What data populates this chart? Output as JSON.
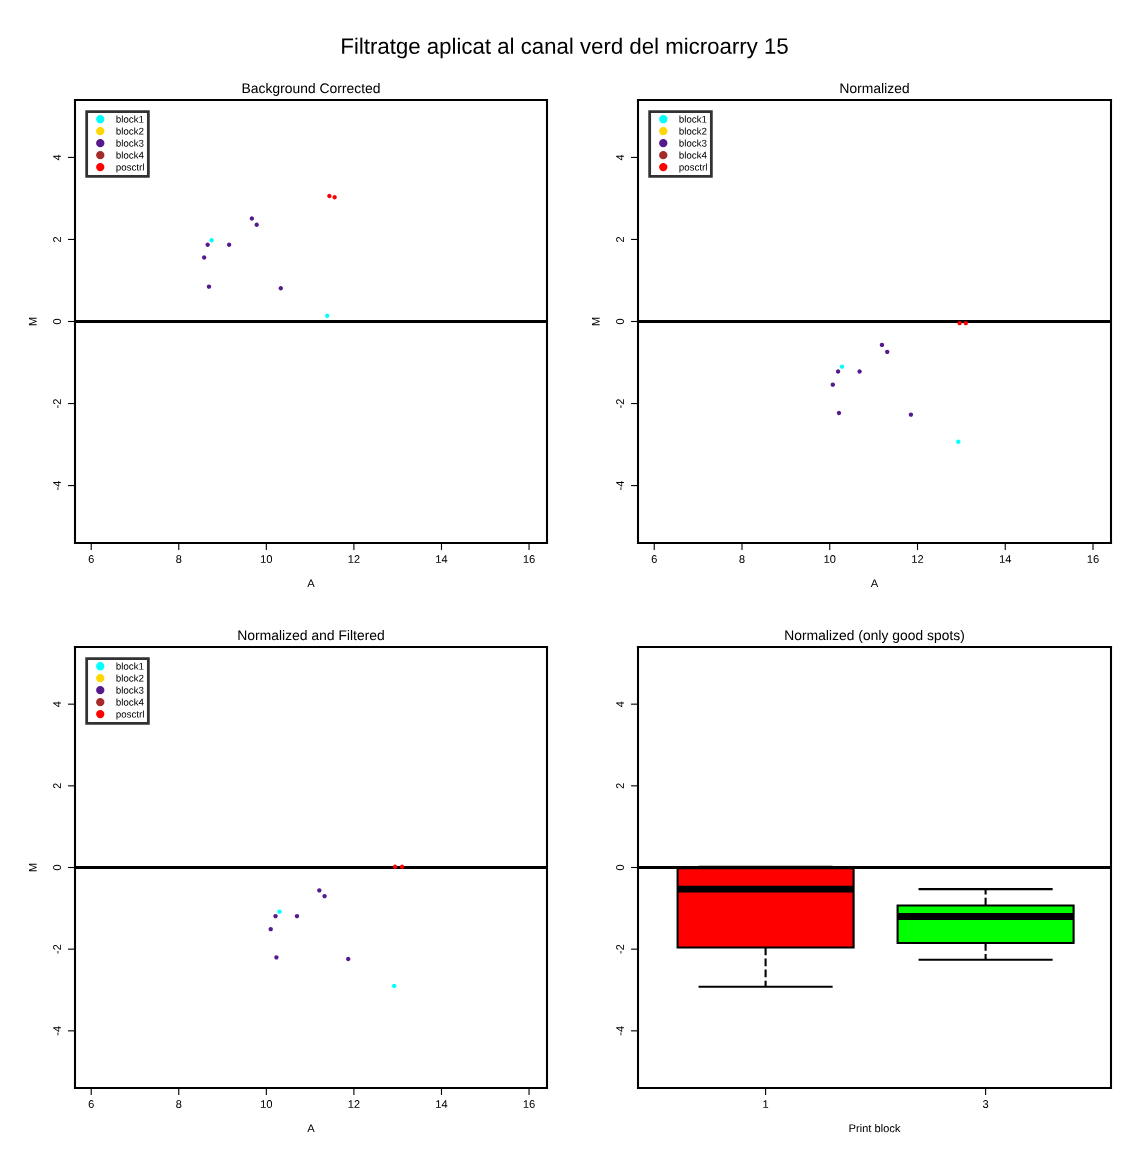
{
  "chart_data": [
    {
      "type": "scatter",
      "annotations": [
        "Filtratge aplicat al canal verd del microarry 15"
      ],
      "title": "Background Corrected",
      "xlabel": "A",
      "ylabel": "M",
      "xlim": [
        5.63,
        16.41
      ],
      "ylim": [
        -5.4,
        5.4
      ],
      "xticks": [
        6,
        8,
        10,
        12,
        14,
        16
      ],
      "yticks": [
        -4,
        -2,
        0,
        2,
        4
      ],
      "grid": false,
      "legend": "top left",
      "marker": "circle",
      "ref_lines": [
        {
          "axis": "y",
          "value": 0,
          "color": "#000000"
        }
      ],
      "series": [
        {
          "name": "block1",
          "color": "#00ffff",
          "x": [
            8.75,
            11.39
          ],
          "values": [
            1.98,
            0.14
          ]
        },
        {
          "name": "block2",
          "color": "#ffd700"
        },
        {
          "name": "block3",
          "color": "#551a8b",
          "x": [
            8.66,
            9.15,
            9.67,
            9.78,
            8.58,
            8.69,
            10.33
          ],
          "values": [
            1.87,
            1.87,
            2.51,
            2.36,
            1.56,
            0.85,
            0.81
          ]
        },
        {
          "name": "block4",
          "color": "#a52a2a"
        },
        {
          "name": "posctrl",
          "color": "#ff0000",
          "x": [
            11.44,
            11.56
          ],
          "values": [
            3.06,
            3.03
          ]
        }
      ]
    },
    {
      "type": "scatter",
      "title": "Normalized",
      "xlabel": "A",
      "ylabel": "M",
      "xlim": [
        5.63,
        16.41
      ],
      "ylim": [
        -5.4,
        5.4
      ],
      "xticks": [
        6,
        8,
        10,
        12,
        14,
        16
      ],
      "yticks": [
        -4,
        -2,
        0,
        2,
        4
      ],
      "grid": false,
      "legend": "top left",
      "marker": "circle",
      "ref_lines": [
        {
          "axis": "y",
          "value": 0,
          "color": "#000000"
        }
      ],
      "series": [
        {
          "name": "block1",
          "color": "#00ffff",
          "x": [
            10.28,
            12.93
          ],
          "values": [
            -1.1,
            -2.93
          ]
        },
        {
          "name": "block2",
          "color": "#ffd700"
        },
        {
          "name": "block3",
          "color": "#551a8b",
          "x": [
            11.19,
            11.31,
            10.19,
            10.68,
            10.07,
            10.21,
            11.85
          ],
          "values": [
            -0.57,
            -0.74,
            -1.22,
            -1.22,
            -1.54,
            -2.23,
            -2.27
          ]
        },
        {
          "name": "block4",
          "color": "#a52a2a"
        },
        {
          "name": "posctrl",
          "color": "#ff0000",
          "x": [
            12.96,
            13.1
          ],
          "values": [
            -0.04,
            -0.04
          ]
        }
      ]
    },
    {
      "type": "scatter",
      "title": "Normalized and Filtered",
      "xlabel": "A",
      "ylabel": "M",
      "xlim": [
        5.63,
        16.41
      ],
      "ylim": [
        -5.4,
        5.4
      ],
      "xticks": [
        6,
        8,
        10,
        12,
        14,
        16
      ],
      "yticks": [
        -4,
        -2,
        0,
        2,
        4
      ],
      "grid": false,
      "legend": "top left",
      "marker": "circle",
      "ref_lines": [
        {
          "axis": "y",
          "value": 0,
          "color": "#000000"
        }
      ],
      "series": [
        {
          "name": "block1",
          "color": "#00ffff",
          "x": [
            10.3,
            12.92
          ],
          "values": [
            -1.08,
            -2.9
          ]
        },
        {
          "name": "block2",
          "color": "#ffd700"
        },
        {
          "name": "block3",
          "color": "#551a8b",
          "x": [
            11.21,
            11.33,
            10.21,
            10.7,
            10.1,
            10.23,
            11.87
          ],
          "values": [
            -0.56,
            -0.7,
            -1.19,
            -1.19,
            -1.51,
            -2.2,
            -2.24
          ]
        },
        {
          "name": "block4",
          "color": "#a52a2a"
        },
        {
          "name": "posctrl",
          "color": "#ff0000",
          "x": [
            12.94,
            13.1
          ],
          "values": [
            0.02,
            0.02
          ]
        }
      ]
    },
    {
      "type": "box",
      "title": "Normalized (only good spots)",
      "xlabel": "Print block",
      "categories": [
        "1",
        "3"
      ],
      "ylim": [
        -5.4,
        5.4
      ],
      "yticks": [
        -4,
        -2,
        0,
        2,
        4
      ],
      "grid": false,
      "colors": [
        "#ff0000",
        "#00ff00"
      ],
      "ref_lines": [
        {
          "axis": "y",
          "value": 0,
          "color": "#000000"
        }
      ],
      "boxes": [
        {
          "low": -2.92,
          "q1": -1.96,
          "median": -0.53,
          "q3": -0.02,
          "high": 0.02
        },
        {
          "low": -2.26,
          "q1": -1.85,
          "median": -1.2,
          "q3": -0.93,
          "high": -0.53
        }
      ]
    }
  ]
}
